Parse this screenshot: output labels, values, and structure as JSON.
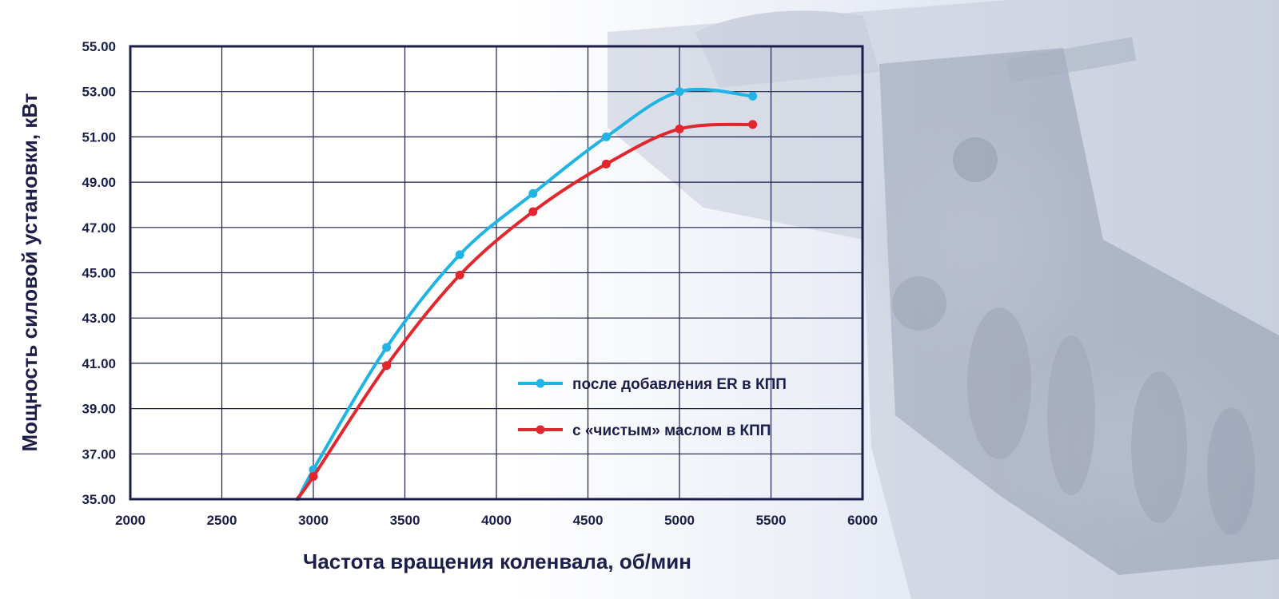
{
  "chart_data": {
    "type": "line",
    "title": "",
    "xlabel": "Частота вращения коленвала, об/мин",
    "ylabel": "Мощность силовой установки, кВт",
    "xlim": [
      2000,
      6000
    ],
    "ylim": [
      35,
      55
    ],
    "x_ticks": [
      "2000",
      "2500",
      "3000",
      "3500",
      "4000",
      "4500",
      "5000",
      "5500",
      "6000"
    ],
    "y_ticks": [
      "35.00",
      "37.00",
      "39.00",
      "41.00",
      "43.00",
      "45.00",
      "47.00",
      "49.00",
      "51.00",
      "53.00",
      "55.00"
    ],
    "grid": true,
    "legend_position": "right",
    "series": [
      {
        "name": "после добавления ER в КПП",
        "color": "#1fb4e3",
        "start": [
          2920,
          35.0
        ],
        "x": [
          3000,
          3400,
          3800,
          4200,
          4600,
          5000,
          5400
        ],
        "y": [
          36.3,
          41.7,
          45.8,
          48.5,
          51.0,
          53.0,
          52.8
        ]
      },
      {
        "name": "с «чистым» маслом в КПП",
        "color": "#e2262d",
        "start": [
          2910,
          35.0
        ],
        "x": [
          3000,
          3400,
          3800,
          4200,
          4600,
          5000,
          5400
        ],
        "y": [
          36.0,
          40.9,
          44.9,
          47.7,
          49.8,
          51.35,
          51.55
        ]
      }
    ]
  }
}
